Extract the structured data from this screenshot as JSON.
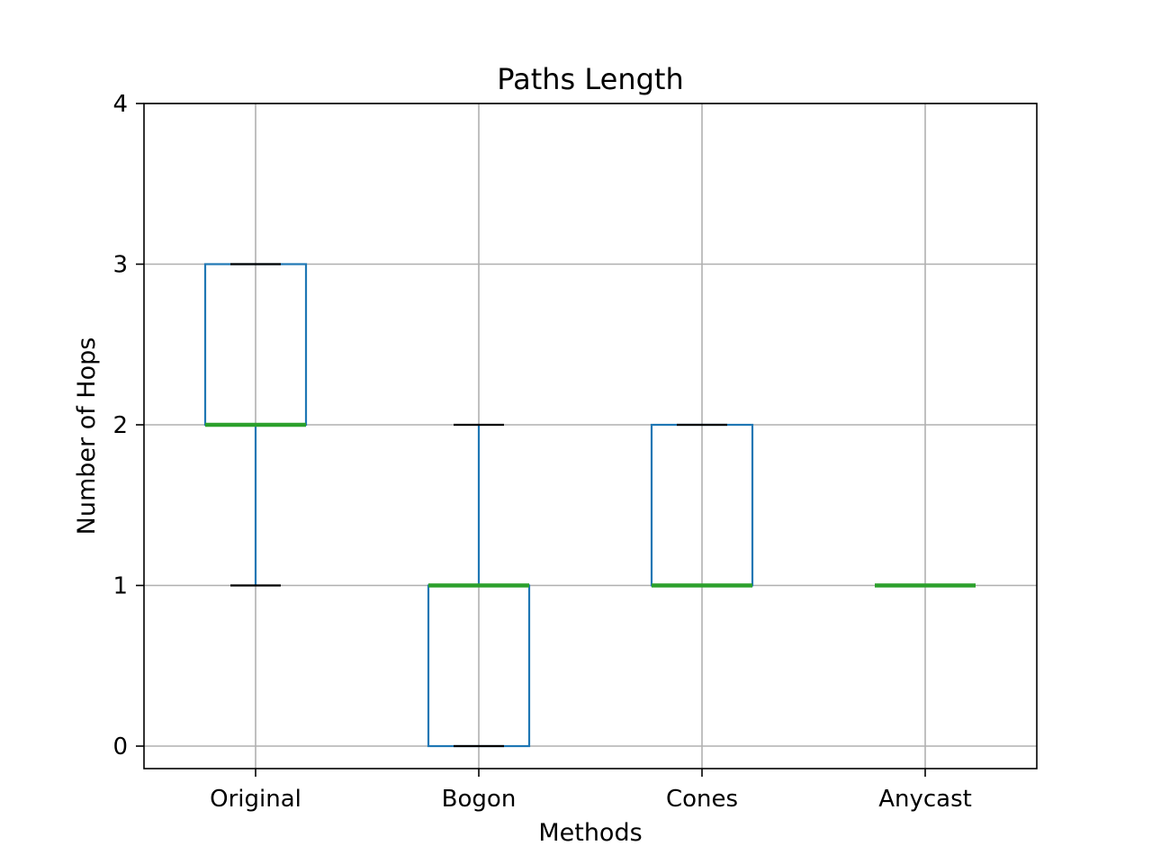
{
  "chart_data": {
    "type": "box",
    "title": "Paths Length",
    "xlabel": "Methods",
    "ylabel": "Number of Hops",
    "categories": [
      "Original",
      "Bogon",
      "Cones",
      "Anycast"
    ],
    "ylim": [
      -0.14,
      4
    ],
    "yticks": [
      0,
      1,
      2,
      3,
      4
    ],
    "grid": true,
    "boxes": [
      {
        "category": "Original",
        "whisker_low": 1,
        "q1": 2,
        "median": 2,
        "q3": 3,
        "whisker_high": 3
      },
      {
        "category": "Bogon",
        "whisker_low": 0,
        "q1": 0,
        "median": 1,
        "q3": 1,
        "whisker_high": 2
      },
      {
        "category": "Cones",
        "whisker_low": 1,
        "q1": 1,
        "median": 1,
        "q3": 2,
        "whisker_high": 2
      },
      {
        "category": "Anycast",
        "whisker_low": 1,
        "q1": 1,
        "median": 1,
        "q3": 1,
        "whisker_high": 1
      }
    ],
    "colors": {
      "box": "#1f77b4",
      "median": "#2ca02c",
      "cap": "#000000",
      "grid": "#b0b0b0"
    }
  }
}
